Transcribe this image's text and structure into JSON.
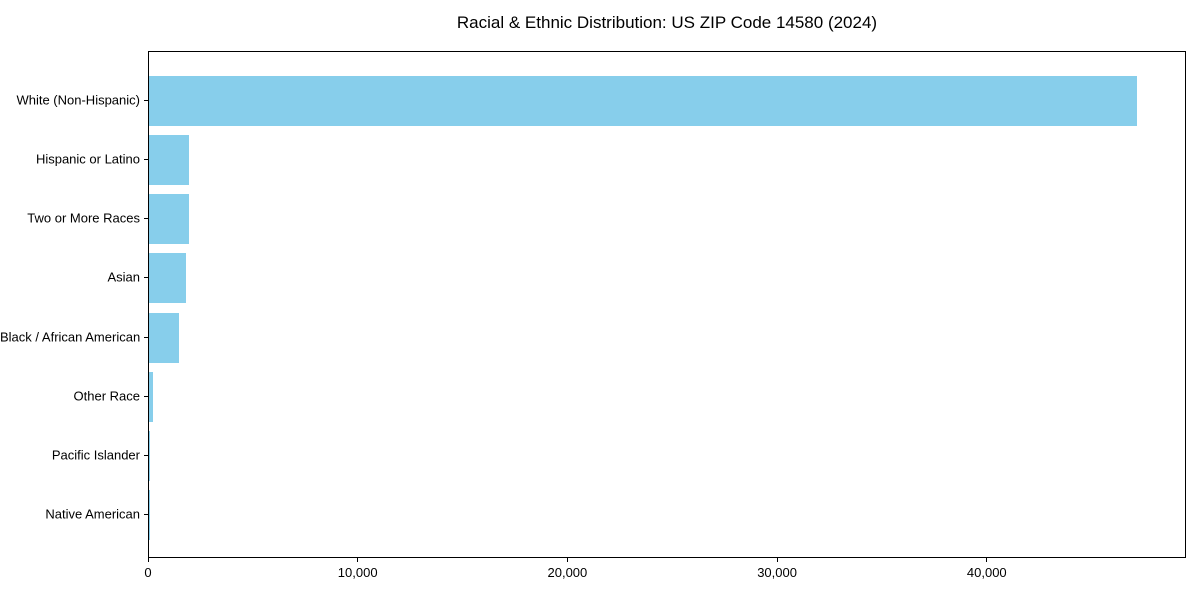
{
  "chart_data": {
    "type": "bar",
    "orientation": "horizontal",
    "title": "Racial & Ethnic Distribution: US ZIP Code 14580 (2024)",
    "categories": [
      "White (Non-Hispanic)",
      "Hispanic or Latino",
      "Two or More Races",
      "Asian",
      "Black / African American",
      "Other Race",
      "Pacific Islander",
      "Native American"
    ],
    "values": [
      47200,
      1920,
      1900,
      1760,
      1450,
      180,
      30,
      15
    ],
    "bar_color": "#87CEEB",
    "text_color": "#000000",
    "xlabel": "",
    "ylabel": "",
    "xlim": [
      0,
      49500
    ],
    "x_ticks": [
      0,
      10000,
      20000,
      30000,
      40000
    ],
    "x_tick_labels": [
      "0",
      "10,000",
      "20,000",
      "30,000",
      "40,000"
    ],
    "grid": false,
    "legend": null,
    "background": "#ffffff"
  }
}
